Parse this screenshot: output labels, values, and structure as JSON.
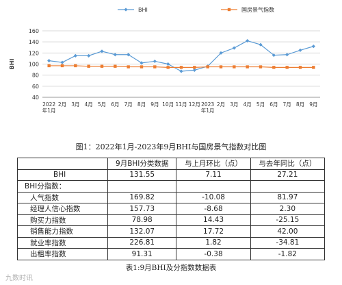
{
  "chart_data": {
    "type": "line",
    "legend_position": "top",
    "ylabel": "BHI",
    "ylim": [
      40,
      160
    ],
    "yticks": [
      40,
      60,
      80,
      100,
      120,
      140,
      160
    ],
    "grid": true,
    "x": [
      "2022\n年1月",
      "2月",
      "3月",
      "4月",
      "5月",
      "6月",
      "7月",
      "8月",
      "9月",
      "10月",
      "11月",
      "12月",
      "2023\n年1月",
      "2月",
      "3月",
      "4月",
      "5月",
      "6月",
      "7月",
      "8月",
      "9月"
    ],
    "series": [
      {
        "name": "BHI",
        "color": "#5b9bd5",
        "marker": "diamond",
        "values": [
          106,
          103,
          115,
          115,
          123,
          117,
          117,
          102,
          105,
          100,
          87,
          89,
          96,
          120,
          129,
          142,
          135,
          116,
          117,
          125,
          132
        ]
      },
      {
        "name": "国房景气指数",
        "color": "#ed7d31",
        "marker": "square",
        "values": [
          97,
          97,
          97,
          96,
          96,
          96,
          95,
          95,
          95,
          94,
          94,
          94,
          95,
          95,
          95,
          95,
          95,
          94,
          94,
          94,
          94
        ]
      }
    ]
  },
  "figure_caption": "图1：2022年1月-2023年9月BHI与国房景气指数对比图",
  "table": {
    "headers": [
      "",
      "9月BHI分类数据",
      "与上月环比（点）",
      "与去年同比（点）"
    ],
    "bhi_row": {
      "label": "BHI",
      "value": "131.55",
      "mom": "7.11",
      "yoy": "27.21"
    },
    "group_label": "BHI分指数：",
    "rows": [
      {
        "label": "人气指数",
        "value": "169.82",
        "mom": "-10.08",
        "yoy": "81.97"
      },
      {
        "label": "经理人信心指数",
        "value": "157.73",
        "mom": "-8.68",
        "yoy": "2.30"
      },
      {
        "label": "购买力指数",
        "value": "78.98",
        "mom": "14.43",
        "yoy": "-25.15"
      },
      {
        "label": "销售能力指数",
        "value": "132.07",
        "mom": "17.72",
        "yoy": "42.00"
      },
      {
        "label": "就业率指数",
        "value": "226.81",
        "mom": "1.82",
        "yoy": "-34.81"
      },
      {
        "label": "出租率指数",
        "value": "91.31",
        "mom": "-0.38",
        "yoy": "-1.82"
      }
    ]
  },
  "table_caption": "表1:9月BHI及分指数数据表",
  "watermark": "九数时讯"
}
